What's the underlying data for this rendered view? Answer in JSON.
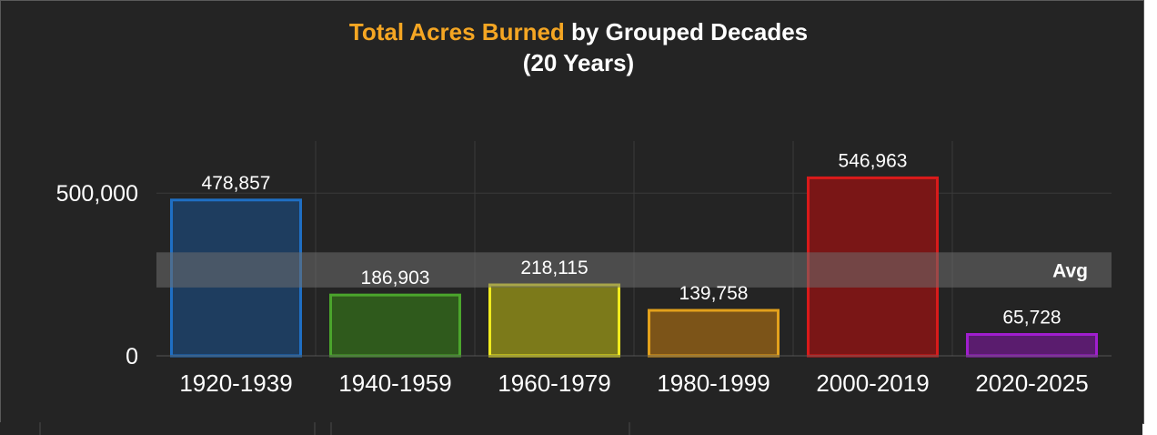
{
  "chart_data": {
    "type": "bar",
    "title_highlight": "Total Acres Burned",
    "title_rest": "by Grouped Decades",
    "subtitle": "(20 Years)",
    "xlabel": "",
    "ylabel": "",
    "categories": [
      "1920-1939",
      "1940-1959",
      "1960-1979",
      "1980-1999",
      "2000-2019",
      "2020-2025"
    ],
    "values": [
      478857,
      186903,
      218115,
      139758,
      546963,
      65728
    ],
    "value_labels": [
      "478,857",
      "186,903",
      "218,115",
      "139,758",
      "546,963",
      "65,728"
    ],
    "y_ticks": [
      0,
      500000
    ],
    "y_tick_labels": [
      "0",
      "500,000"
    ],
    "ylim": [
      0,
      660000
    ],
    "avg_band": {
      "label": "Avg",
      "low": 210000,
      "high": 318000
    },
    "grid": true,
    "bar_fills": [
      "#1e3d5f",
      "#2f5a1c",
      "#7c7a1a",
      "#7c5418",
      "#7a1616",
      "#5a1c6e"
    ],
    "bar_strokes": [
      "#1f6fc4",
      "#4ba52c",
      "#f0ea1e",
      "#e3a11c",
      "#d91a1a",
      "#a01ecf"
    ],
    "colors": {
      "background": "#242424",
      "title_highlight": "#f5a623",
      "text": "#ffffff",
      "grid": "#3a3a3a",
      "band": "#6e6e6e"
    }
  }
}
